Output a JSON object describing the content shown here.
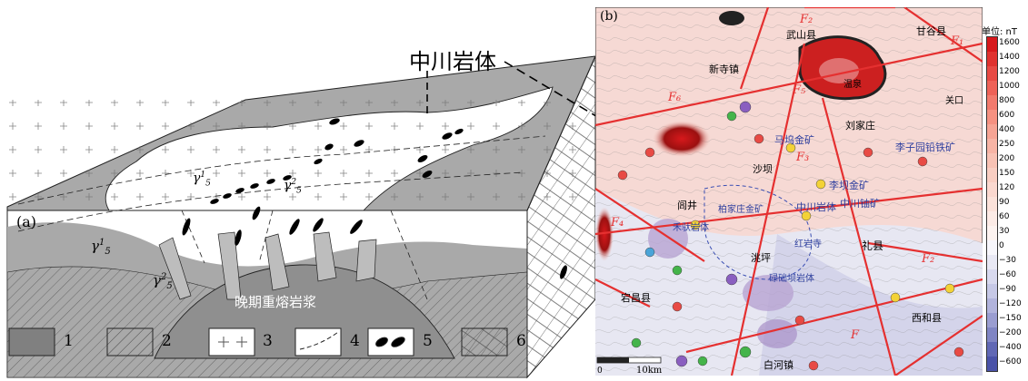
{
  "panel_a": {
    "label": "(a)",
    "callout": "中川岩体",
    "magma_label": "晚期重熔岩浆",
    "gamma_labels": [
      {
        "base": "γ",
        "sup": "1",
        "sub": "5"
      },
      {
        "base": "γ",
        "sup": "2",
        "sub": "5"
      },
      {
        "base": "γ",
        "sup": "1",
        "sub": "5"
      },
      {
        "base": "γ",
        "sup": "2",
        "sub": "5"
      }
    ],
    "legend": [
      "1",
      "2",
      "3",
      "4",
      "5",
      "6"
    ]
  },
  "panel_b": {
    "label": "(b)",
    "place_names": [
      "武山县",
      "甘谷县",
      "新寺镇",
      "温泉",
      "刘家庄",
      "关口",
      "马坞金矿",
      "李子园铅铁矿",
      "沙坝",
      "李坝金矿",
      "闾井",
      "柏家庄金矿",
      "中川岩体",
      "中川铀矿",
      "禾驮岩体",
      "红岩寺",
      "礼县",
      "洮坪",
      "碌础坝岩体",
      "宕昌县",
      "西和县",
      "白河镇",
      "中川岩体"
    ],
    "faults": [
      "F₂",
      "F₁",
      "F₅",
      "F₆",
      "F₃",
      "F₄",
      "F₂",
      "F"
    ],
    "scale": {
      "start": "0",
      "end": "10km"
    }
  },
  "colorbar": {
    "title": "单位: nT",
    "ticks": [
      "1600",
      "1400",
      "1200",
      "1000",
      "800",
      "600",
      "400",
      "250",
      "200",
      "150",
      "120",
      "90",
      "60",
      "30",
      "0",
      "−30",
      "−60",
      "−90",
      "−120",
      "−150",
      "−200",
      "−400",
      "−600"
    ],
    "colors": [
      "#d7191c",
      "#e0322f",
      "#e84a44",
      "#ee6258",
      "#f27a6d",
      "#f59181",
      "#f6a494",
      "#f7b4a5",
      "#f8c2b4",
      "#f9cec2",
      "#fad8cf",
      "#fbe2da",
      "#fcebe6",
      "#fdf3f0",
      "#f7f6fb",
      "#e8e8f4",
      "#d8d9ee",
      "#c6c8e6",
      "#b1b3dc",
      "#9a9dd1",
      "#8085c4",
      "#6168b5",
      "#4a52a8"
    ]
  }
}
